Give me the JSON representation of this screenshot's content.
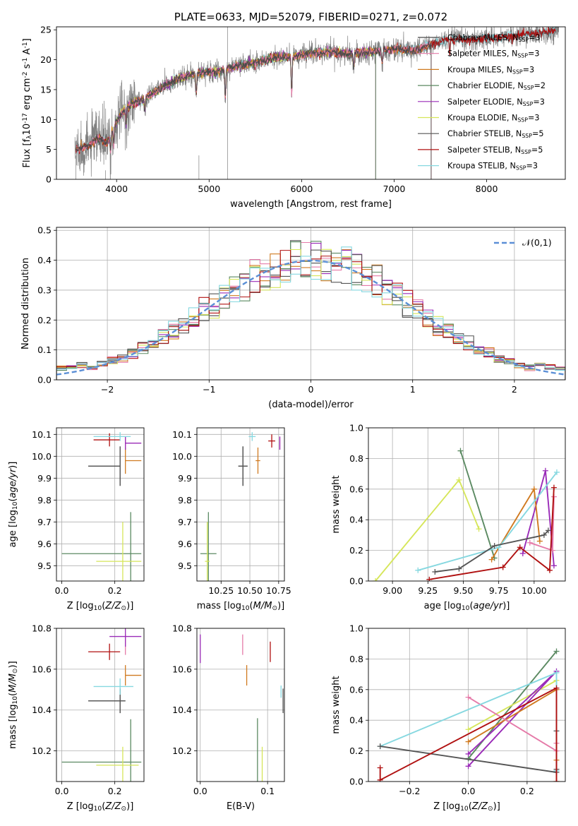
{
  "colors": {
    "Chabrier MILES": "#4b4b4b",
    "Salpeter MILES": "#e57aa8",
    "Kroupa MILES": "#d07a20",
    "Chabrier ELODIE": "#5b8a62",
    "Salpeter ELODIE": "#9a2bb8",
    "Kroupa ELODIE": "#d6e65a",
    "Chabrier STELIB": "#555555",
    "Salpeter STELIB": "#b01010",
    "Kroupa STELIB": "#86d8e0",
    "gauss": "#5b8fd6"
  },
  "chart_data": [
    {
      "id": "spectrum",
      "type": "line",
      "title": "PLATE=0633, MJD=52079, FIBERID=0271, z=0.072",
      "xlabel": "wavelength [Angstrom, rest frame]",
      "ylabel": "Flux [f$_\\lambda$10$^{-17}$ erg cm$^{-2}$ s$^{-1}$ A$^{-1}$]",
      "xlim": [
        3350,
        8850
      ],
      "ylim": [
        0,
        25.5
      ],
      "xticks": [
        4000,
        5000,
        6000,
        7000,
        8000
      ],
      "yticks": [
        0,
        5,
        10,
        15,
        20,
        25
      ],
      "grid": false,
      "legend_position": "upper-right",
      "legend": [
        {
          "model": "Chabrier MILES",
          "label": "Chabrier MILES, N$_{SSP}$=3"
        },
        {
          "model": "Salpeter MILES",
          "label": "Salpeter MILES, N$_{SSP}$=3"
        },
        {
          "model": "Kroupa MILES",
          "label": "Kroupa MILES, N$_{SSP}$=3"
        },
        {
          "model": "Chabrier ELODIE",
          "label": "Chabrier ELODIE, N$_{SSP}$=2"
        },
        {
          "model": "Salpeter ELODIE",
          "label": "Salpeter ELODIE, N$_{SSP}$=3"
        },
        {
          "model": "Kroupa ELODIE",
          "label": "Kroupa ELODIE, N$_{SSP}$=3"
        },
        {
          "model": "Chabrier STELIB",
          "label": "Chabrier STELIB, N$_{SSP}$=5"
        },
        {
          "model": "Salpeter STELIB",
          "label": "Salpeter STELIB, N$_{SSP}$=5"
        },
        {
          "model": "Kroupa STELIB",
          "label": "Kroupa STELIB, N$_{SSP}$=3"
        }
      ],
      "continuum": [
        [
          3560,
          5.0
        ],
        [
          3700,
          5.5
        ],
        [
          3800,
          7.0
        ],
        [
          3900,
          6.0
        ],
        [
          3950,
          8.0
        ],
        [
          4050,
          11.0
        ],
        [
          4150,
          12.5
        ],
        [
          4300,
          13.5
        ],
        [
          4500,
          15.5
        ],
        [
          4700,
          17.0
        ],
        [
          4900,
          17.8
        ],
        [
          5100,
          18.0
        ],
        [
          5300,
          19.0
        ],
        [
          5500,
          19.5
        ],
        [
          5700,
          20.3
        ],
        [
          5900,
          20.5
        ],
        [
          6100,
          21.0
        ],
        [
          6300,
          21.3
        ],
        [
          6500,
          21.0
        ],
        [
          6700,
          21.3
        ],
        [
          7000,
          21.8
        ],
        [
          7200,
          21.5
        ],
        [
          7400,
          22.5
        ],
        [
          7600,
          23.5
        ],
        [
          7800,
          23.3
        ],
        [
          8000,
          23.6
        ],
        [
          8200,
          23.8
        ],
        [
          8400,
          24.2
        ],
        [
          8600,
          24.5
        ],
        [
          8700,
          24.8
        ]
      ],
      "model_ranges": {
        "Chabrier MILES": [
          3560,
          7400
        ],
        "Salpeter MILES": [
          3560,
          7400
        ],
        "Kroupa MILES": [
          3560,
          7400
        ],
        "Chabrier ELODIE": [
          3900,
          6800
        ],
        "Salpeter ELODIE": [
          3900,
          6800
        ],
        "Kroupa ELODIE": [
          3900,
          6800
        ],
        "Chabrier STELIB": [
          3560,
          8750
        ],
        "Salpeter STELIB": [
          3560,
          8750
        ],
        "Kroupa STELIB": [
          3560,
          8750
        ]
      },
      "data_range": [
        3550,
        8780
      ]
    },
    {
      "id": "residuals",
      "type": "step",
      "xlabel": "(data-model)/error",
      "ylabel": "Normed distribution",
      "xlim": [
        -2.5,
        2.5
      ],
      "ylim": [
        0,
        0.51
      ],
      "xticks": [
        -2,
        -1,
        0,
        1,
        2
      ],
      "yticks": [
        0.0,
        0.1,
        0.2,
        0.3,
        0.4,
        0.5
      ],
      "grid": true,
      "legend_position": "upper-right",
      "legend": [
        {
          "label": "$\\mathcal{N}(0,1)$"
        }
      ],
      "bin_edges_range": [
        -2.5,
        2.5
      ],
      "bins": 50,
      "gaussian": {
        "mean": 0,
        "sigma": 1,
        "style": "dashed"
      }
    },
    {
      "id": "age-vs-Z",
      "type": "errorbar",
      "xlabel": "Z [log$_{10}$($Z/Z_\\odot$)]",
      "ylabel": "age  [log$_{10}$($age/yr$)]",
      "xlim": [
        -0.02,
        0.31
      ],
      "ylim": [
        9.43,
        10.13
      ],
      "xticks": [
        0.0,
        0.2
      ],
      "yticks": [
        9.5,
        9.6,
        9.7,
        9.8,
        9.9,
        10.0,
        10.1
      ],
      "grid": true,
      "points": [
        {
          "model": "Chabrier MILES",
          "x": 0.22,
          "y": 9.955,
          "xerr": [
            0.12,
            0.0
          ],
          "yerr": 0.09
        },
        {
          "model": "Salpeter MILES",
          "x": 0.24,
          "y": 10.06,
          "xerr": [
            0.0,
            0.0
          ],
          "yerr": 0.03
        },
        {
          "model": "Kroupa MILES",
          "x": 0.24,
          "y": 9.98,
          "xerr": [
            0.0,
            0.06
          ],
          "yerr": 0.06
        },
        {
          "model": "Chabrier ELODIE",
          "x": 0.26,
          "y": 9.555,
          "xerr": [
            0.26,
            0.04
          ],
          "yerr": 0.19
        },
        {
          "model": "Salpeter ELODIE",
          "x": 0.24,
          "y": 10.06,
          "xerr": [
            0.0,
            0.06
          ],
          "yerr": 0.03
        },
        {
          "model": "Kroupa ELODIE",
          "x": 0.23,
          "y": 9.52,
          "xerr": [
            0.1,
            0.07
          ],
          "yerr": 0.18
        },
        {
          "model": "Chabrier STELIB",
          "x": 0.22,
          "y": 9.955,
          "xerr": [
            0.12,
            0.0
          ],
          "yerr": 0.09
        },
        {
          "model": "Salpeter STELIB",
          "x": 0.18,
          "y": 10.075,
          "xerr": [
            0.06,
            0.04
          ],
          "yerr": 0.03
        },
        {
          "model": "Kroupa STELIB",
          "x": 0.22,
          "y": 10.09,
          "xerr": [
            0.1,
            0.04
          ],
          "yerr": 0.02
        }
      ]
    },
    {
      "id": "age-vs-mass",
      "type": "errorbar",
      "xlabel": "mass [log$_{10}$($M/M_\\odot$)]",
      "ylabel": "",
      "xlim": [
        10.04,
        10.8
      ],
      "ylim": [
        9.43,
        10.13
      ],
      "xticks": [
        10.25,
        10.5,
        10.75
      ],
      "yticks": [
        9.5,
        9.6,
        9.7,
        9.8,
        9.9,
        10.0,
        10.1
      ],
      "grid": true,
      "points": [
        {
          "model": "Chabrier MILES",
          "x": 10.44,
          "y": 9.955,
          "xerr": [
            0.04,
            0.04
          ],
          "yerr": 0.09
        },
        {
          "model": "Salpeter MILES",
          "x": 10.76,
          "y": 10.06,
          "xerr": [
            0.0,
            0.0
          ],
          "yerr": 0.03
        },
        {
          "model": "Kroupa MILES",
          "x": 10.57,
          "y": 9.98,
          "xerr": [
            0.02,
            0.02
          ],
          "yerr": 0.06
        },
        {
          "model": "Chabrier ELODIE",
          "x": 10.14,
          "y": 9.555,
          "xerr": [
            0.07,
            0.07
          ],
          "yerr": 0.19
        },
        {
          "model": "Salpeter ELODIE",
          "x": 10.76,
          "y": 10.06,
          "xerr": [
            0.0,
            0.0
          ],
          "yerr": 0.03
        },
        {
          "model": "Kroupa ELODIE",
          "x": 10.13,
          "y": 9.52,
          "xerr": [
            0.02,
            0.02
          ],
          "yerr": 0.18
        },
        {
          "model": "Chabrier STELIB",
          "x": 10.44,
          "y": 9.955,
          "xerr": [
            0.04,
            0.04
          ],
          "yerr": 0.09
        },
        {
          "model": "Salpeter STELIB",
          "x": 10.69,
          "y": 10.07,
          "xerr": [
            0.03,
            0.03
          ],
          "yerr": 0.03
        },
        {
          "model": "Kroupa STELIB",
          "x": 10.52,
          "y": 10.09,
          "xerr": [
            0.03,
            0.03
          ],
          "yerr": 0.02
        }
      ]
    },
    {
      "id": "weight-vs-age",
      "type": "line",
      "xlabel": "age  [log$_{10}$($age/yr$)]",
      "ylabel": "mass weight",
      "xlim": [
        8.83,
        10.22
      ],
      "ylim": [
        0.0,
        1.0
      ],
      "xticks": [
        9.0,
        9.25,
        9.5,
        9.75,
        10.0
      ],
      "yticks": [
        0.0,
        0.2,
        0.4,
        0.6,
        0.8,
        1.0
      ],
      "grid": true,
      "series": [
        {
          "model": "Chabrier ELODIE",
          "x": [
            9.48,
            9.72
          ],
          "y": [
            0.85,
            0.15
          ]
        },
        {
          "model": "Kroupa ELODIE",
          "x": [
            8.88,
            9.47,
            9.61
          ],
          "y": [
            0.0,
            0.66,
            0.34
          ]
        },
        {
          "model": "Salpeter ELODIE",
          "x": [
            9.92,
            10.08,
            10.14
          ],
          "y": [
            0.18,
            0.72,
            0.1
          ]
        },
        {
          "model": "Kroupa MILES",
          "x": [
            9.7,
            10.0,
            10.04
          ],
          "y": [
            0.14,
            0.6,
            0.26
          ]
        },
        {
          "model": "Salpeter MILES",
          "x": [
            9.97,
            10.13,
            10.14
          ],
          "y": [
            0.25,
            0.2,
            0.55
          ]
        },
        {
          "model": "Kroupa STELIB",
          "x": [
            9.18,
            9.75,
            10.16
          ],
          "y": [
            0.07,
            0.22,
            0.71
          ]
        },
        {
          "model": "Chabrier STELIB",
          "x": [
            9.3,
            9.47,
            9.72,
            10.07,
            10.1
          ],
          "y": [
            0.06,
            0.08,
            0.23,
            0.3,
            0.33
          ]
        },
        {
          "model": "Salpeter STELIB",
          "x": [
            9.26,
            9.78,
            9.9,
            10.11,
            10.14
          ],
          "y": [
            0.01,
            0.09,
            0.22,
            0.07,
            0.61
          ]
        }
      ]
    },
    {
      "id": "mass-vs-Z",
      "type": "errorbar",
      "xlabel": "Z [log$_{10}$($Z/Z_\\odot$)]",
      "ylabel": "mass [log$_{10}$($M/M_\\odot$)]",
      "xlim": [
        -0.02,
        0.31
      ],
      "ylim": [
        10.05,
        10.8
      ],
      "xticks": [
        0.0,
        0.2
      ],
      "yticks": [
        10.2,
        10.4,
        10.6,
        10.8
      ],
      "grid": true,
      "points": [
        {
          "model": "Chabrier MILES",
          "x": 0.22,
          "y": 10.445,
          "xerr": [
            0.12,
            0.02
          ],
          "yerr": 0.06
        },
        {
          "model": "Salpeter MILES",
          "x": 0.24,
          "y": 10.72,
          "xerr": [
            0.0,
            0.0
          ],
          "yerr": 0.05
        },
        {
          "model": "Kroupa MILES",
          "x": 0.24,
          "y": 10.57,
          "xerr": [
            0.0,
            0.06
          ],
          "yerr": 0.05
        },
        {
          "model": "Chabrier ELODIE",
          "x": 0.26,
          "y": 10.145,
          "xerr": [
            0.26,
            0.04
          ],
          "yerr": 0.21
        },
        {
          "model": "Salpeter ELODIE",
          "x": 0.24,
          "y": 10.76,
          "xerr": [
            0.06,
            0.06
          ],
          "yerr": 0.05
        },
        {
          "model": "Kroupa ELODIE",
          "x": 0.23,
          "y": 10.13,
          "xerr": [
            0.1,
            0.06
          ],
          "yerr": 0.09
        },
        {
          "model": "Chabrier STELIB",
          "x": 0.22,
          "y": 10.445,
          "xerr": [
            0.12,
            0.02
          ],
          "yerr": 0.06
        },
        {
          "model": "Salpeter STELIB",
          "x": 0.18,
          "y": 10.685,
          "xerr": [
            0.08,
            0.04
          ],
          "yerr": 0.04
        },
        {
          "model": "Kroupa STELIB",
          "x": 0.22,
          "y": 10.515,
          "xerr": [
            0.1,
            0.05
          ],
          "yerr": 0.04
        }
      ]
    },
    {
      "id": "mass-vs-EBV",
      "type": "errorbar",
      "xlabel": "E(B-V)",
      "ylabel": "",
      "xlim": [
        -0.005,
        0.125
      ],
      "ylim": [
        10.05,
        10.8
      ],
      "xticks": [
        0.0,
        0.1
      ],
      "yticks": [
        10.2,
        10.4,
        10.6,
        10.8
      ],
      "grid": true,
      "points": [
        {
          "model": "Salpeter ELODIE",
          "x": 0.0,
          "y": 10.7,
          "xerr": [
            0,
            0
          ],
          "yerr": 0.07
        },
        {
          "model": "Salpeter MILES",
          "x": 0.063,
          "y": 10.72,
          "xerr": [
            0,
            0
          ],
          "yerr": 0.05
        },
        {
          "model": "Kroupa MILES",
          "x": 0.069,
          "y": 10.57,
          "xerr": [
            0,
            0
          ],
          "yerr": 0.05
        },
        {
          "model": "Chabrier ELODIE",
          "x": 0.085,
          "y": 10.16,
          "xerr": [
            0,
            0
          ],
          "yerr": 0.2
        },
        {
          "model": "Kroupa ELODIE",
          "x": 0.092,
          "y": 10.13,
          "xerr": [
            0,
            0
          ],
          "yerr": 0.09
        },
        {
          "model": "Salpeter STELIB",
          "x": 0.104,
          "y": 10.685,
          "xerr": [
            0,
            0
          ],
          "yerr": 0.05
        },
        {
          "model": "Kroupa STELIB",
          "x": 0.12,
          "y": 10.49,
          "xerr": [
            0,
            0
          ],
          "yerr": 0.03
        },
        {
          "model": "Chabrier STELIB",
          "x": 0.123,
          "y": 10.445,
          "xerr": [
            0,
            0
          ],
          "yerr": 0.06
        }
      ]
    },
    {
      "id": "weight-vs-Z",
      "type": "line",
      "xlabel": "Z [log$_{10}$($Z/Z_\\odot$)]",
      "ylabel": "mass weight",
      "xlim": [
        -0.34,
        0.33
      ],
      "ylim": [
        0.0,
        1.0
      ],
      "xticks": [
        -0.2,
        0.0,
        0.2
      ],
      "yticks": [
        0.0,
        0.2,
        0.4,
        0.6,
        0.8,
        1.0
      ],
      "grid": true,
      "series": [
        {
          "model": "Chabrier ELODIE",
          "x": [
            0.0,
            0.3
          ],
          "y": [
            0.15,
            0.85
          ]
        },
        {
          "model": "Kroupa ELODIE",
          "x": [
            0.0,
            0.3,
            0.3
          ],
          "y": [
            0.34,
            0.66,
            0.0
          ]
        },
        {
          "model": "Salpeter ELODIE",
          "x": [
            0.0,
            0.3,
            0.0
          ],
          "y": [
            0.1,
            0.72,
            0.18
          ]
        },
        {
          "model": "Kroupa MILES",
          "x": [
            0.0,
            0.3,
            0.3
          ],
          "y": [
            0.26,
            0.6,
            0.14
          ]
        },
        {
          "model": "Salpeter MILES",
          "x": [
            0.0,
            0.3,
            0.3
          ],
          "y": [
            0.55,
            0.2,
            0.25
          ]
        },
        {
          "model": "Kroupa STELIB",
          "x": [
            -0.3,
            0.3,
            0.3
          ],
          "y": [
            0.23,
            0.71,
            0.07
          ]
        },
        {
          "model": "Chabrier STELIB",
          "x": [
            -0.3,
            0.3,
            0.3,
            0.3
          ],
          "y": [
            0.23,
            0.06,
            0.33,
            0.08
          ]
        },
        {
          "model": "Salpeter STELIB",
          "x": [
            -0.3,
            -0.3,
            0.3,
            0.3
          ],
          "y": [
            0.09,
            0.01,
            0.61,
            0.0
          ]
        }
      ]
    }
  ]
}
